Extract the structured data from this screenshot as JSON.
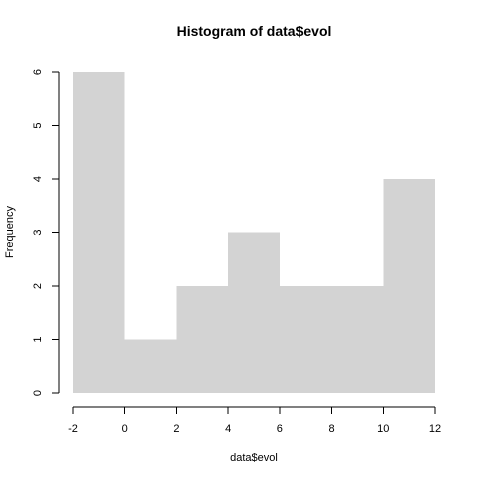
{
  "chart_data": {
    "type": "bar",
    "title": "Histogram of data$evol",
    "xlabel": "data$evol",
    "ylabel": "Frequency",
    "bins": [
      {
        "from": -2,
        "to": 0,
        "count": 6
      },
      {
        "from": 0,
        "to": 2,
        "count": 1
      },
      {
        "from": 2,
        "to": 4,
        "count": 2
      },
      {
        "from": 4,
        "to": 6,
        "count": 3
      },
      {
        "from": 6,
        "to": 8,
        "count": 2
      },
      {
        "from": 8,
        "to": 10,
        "count": 2
      },
      {
        "from": 10,
        "to": 12,
        "count": 4
      }
    ],
    "xlim": [
      -2,
      12
    ],
    "ylim": [
      0,
      6
    ],
    "x_ticks": [
      -2,
      0,
      2,
      4,
      6,
      8,
      10,
      12
    ],
    "y_ticks": [
      0,
      1,
      2,
      3,
      4,
      5,
      6
    ],
    "grid": false,
    "bar_color": "#d3d3d3"
  }
}
